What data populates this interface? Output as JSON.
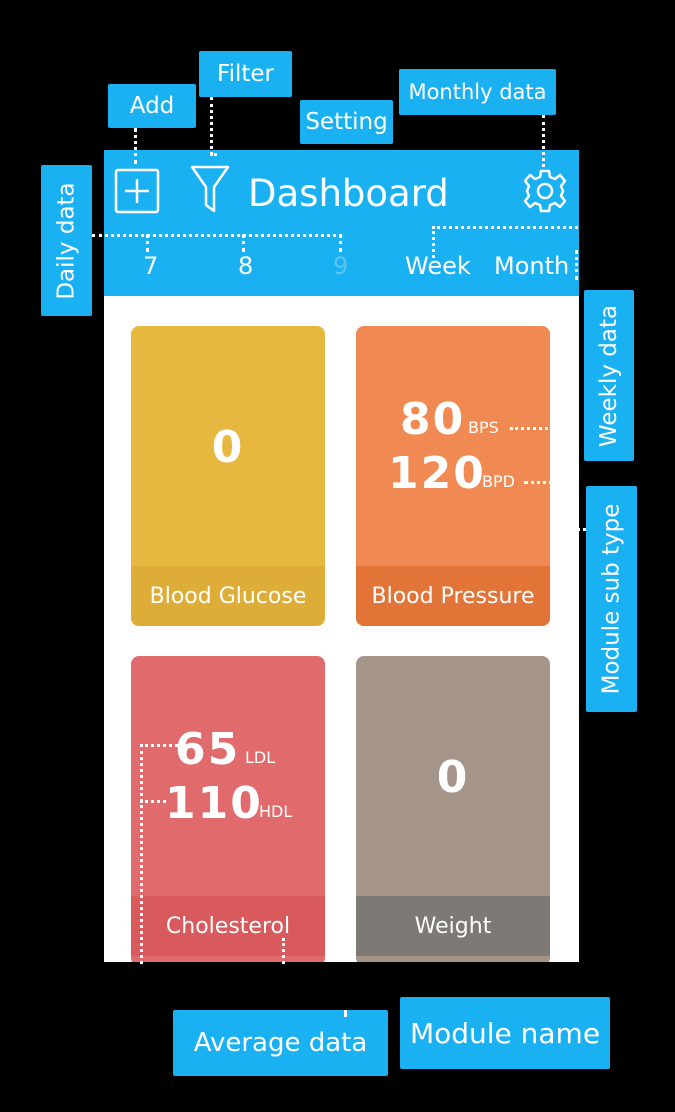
{
  "callouts": {
    "add": "Add",
    "filter": "Filter",
    "setting": "Setting",
    "monthly_data": "Monthly data",
    "daily_data": "Daily data",
    "weekly_data": "Weekly data",
    "module_sub_type": "Module sub type",
    "average_data": "Average data",
    "module_name": "Module name"
  },
  "header": {
    "title": "Dashboard",
    "dates": [
      "7",
      "8",
      "9"
    ],
    "week": "Week",
    "month": "Month"
  },
  "modules": {
    "glucose": {
      "name": "Blood Glucose",
      "value": "0",
      "color": "#e6b840",
      "bar_color": "#ddad38"
    },
    "pressure": {
      "name": "Blood Pressure",
      "values": [
        "80",
        "120"
      ],
      "units": [
        "BPS",
        "BPD"
      ],
      "color": "#f08a52",
      "bar_color": "#e27438"
    },
    "cholesterol": {
      "name": "Cholesterol",
      "values": [
        "65",
        "110"
      ],
      "units": [
        "LDL",
        "HDL"
      ],
      "color": "#e16a6c",
      "bar_color": "#d85a5c"
    },
    "weight": {
      "name": "Weight",
      "value": "0",
      "color": "#a59488",
      "bar_color": "#7d7974"
    }
  },
  "icons": [
    "plus-square-icon",
    "filter-funnel-icon",
    "gear-icon"
  ]
}
